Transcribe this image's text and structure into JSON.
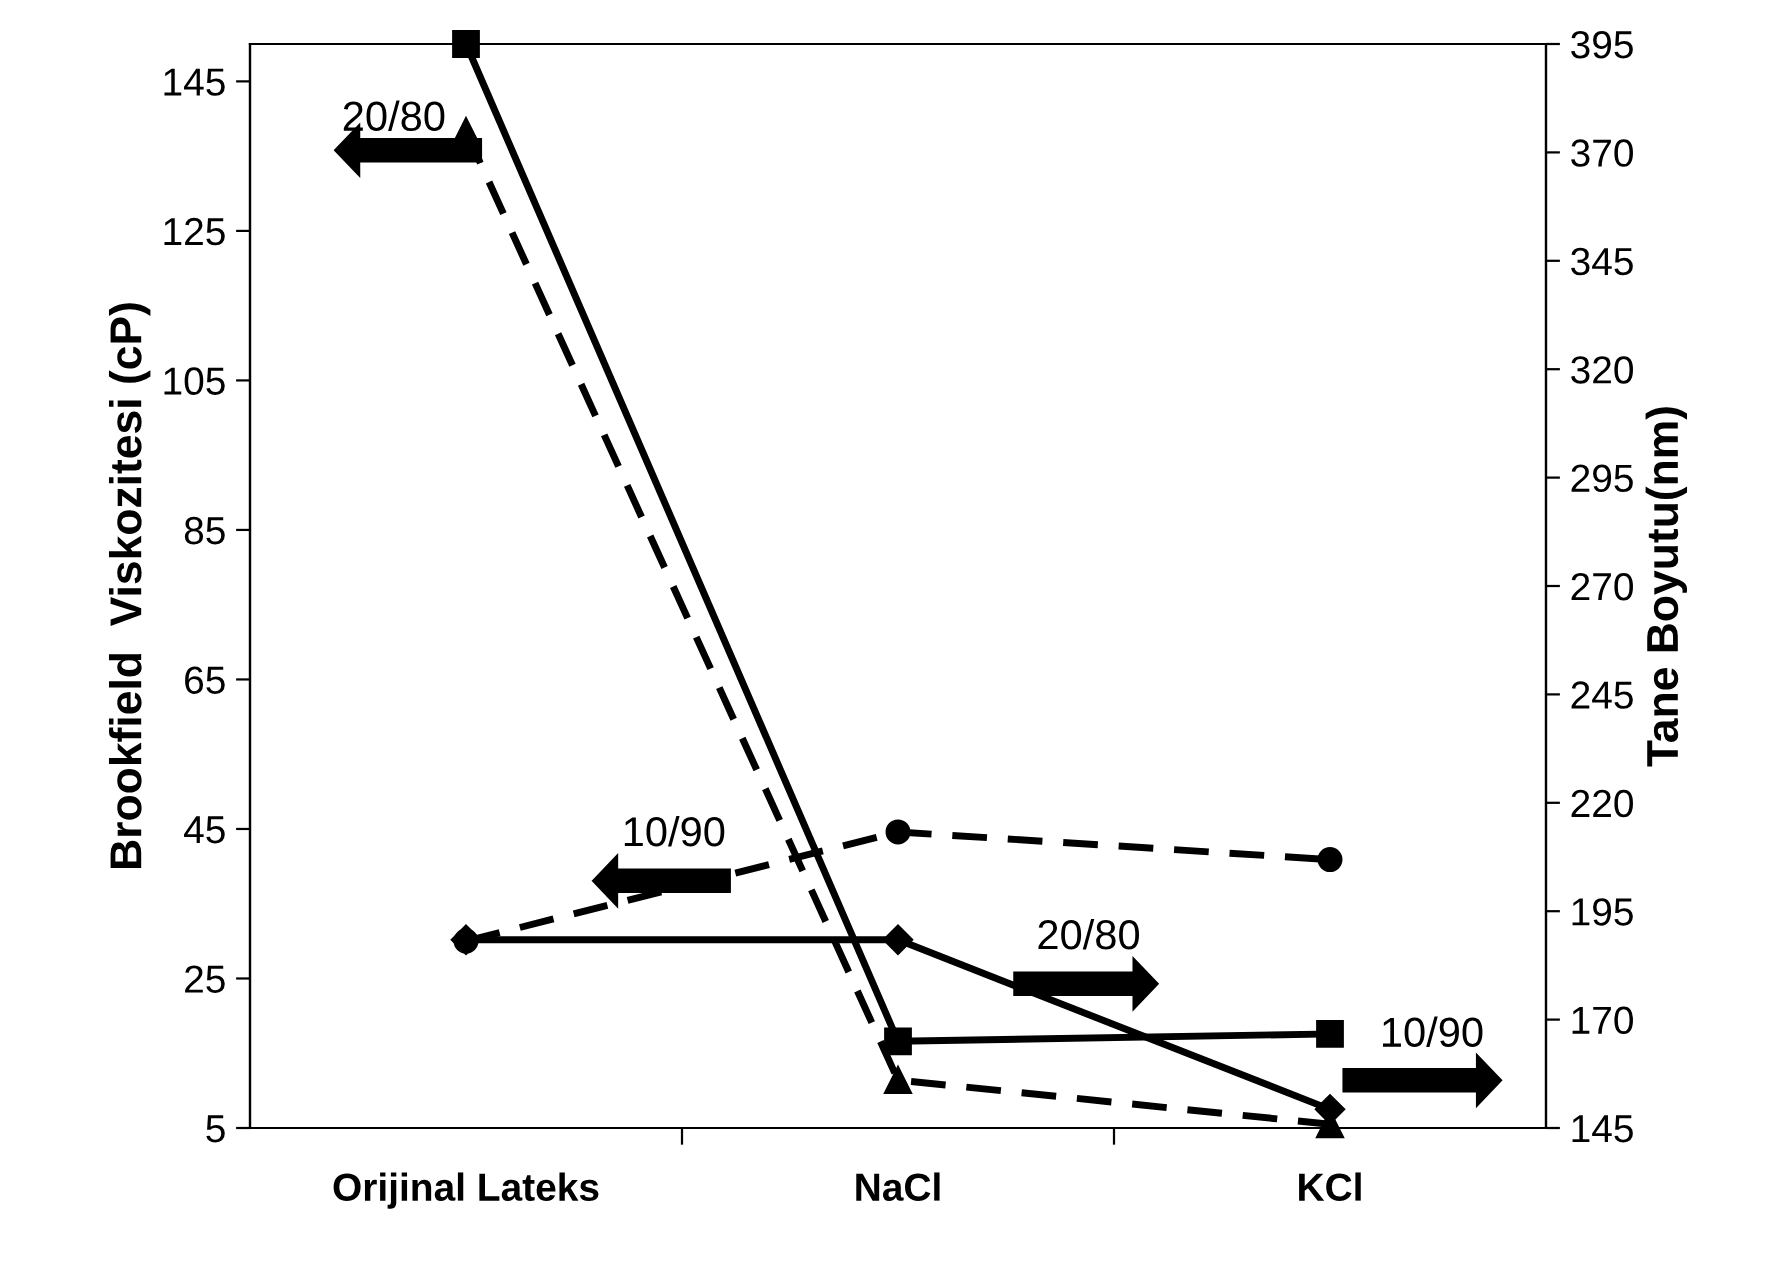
{
  "chart_data": {
    "type": "line",
    "ylabel": "Brookfield  Viskozitesi (cP)",
    "y2label": "Tane Boyutu(nm)",
    "categories": [
      "Orijinal Lateks",
      "NaCl",
      "KCl"
    ],
    "ylim": [
      5,
      150
    ],
    "yticks": [
      5,
      25,
      45,
      65,
      85,
      105,
      125,
      145
    ],
    "y2lim": [
      145,
      395
    ],
    "y2ticks": [
      145,
      170,
      195,
      220,
      245,
      270,
      295,
      320,
      345,
      370,
      395
    ],
    "grid": false,
    "series": [
      {
        "name": "20/80",
        "color": "#000000",
        "values": [
          138.3,
          11.4,
          5.5
        ],
        "marker": "triangle",
        "line_style": "dashed"
      },
      {
        "name": "10/90",
        "color": "#000000",
        "values": [
          30,
          44.6,
          40.9
        ],
        "marker": "circle",
        "line_style": "dashed"
      },
      {
        "name": "20/80",
        "color": "#000000",
        "values": [
          188.4,
          188.4,
          149.3
        ],
        "marker": "diamond",
        "line_style": "solid",
        "axis": "y2"
      },
      {
        "name": "10/90",
        "color": "#000000",
        "values": [
          395,
          165,
          166.7
        ],
        "marker": "square",
        "line_style": "solid",
        "axis": "y2"
      }
    ]
  }
}
